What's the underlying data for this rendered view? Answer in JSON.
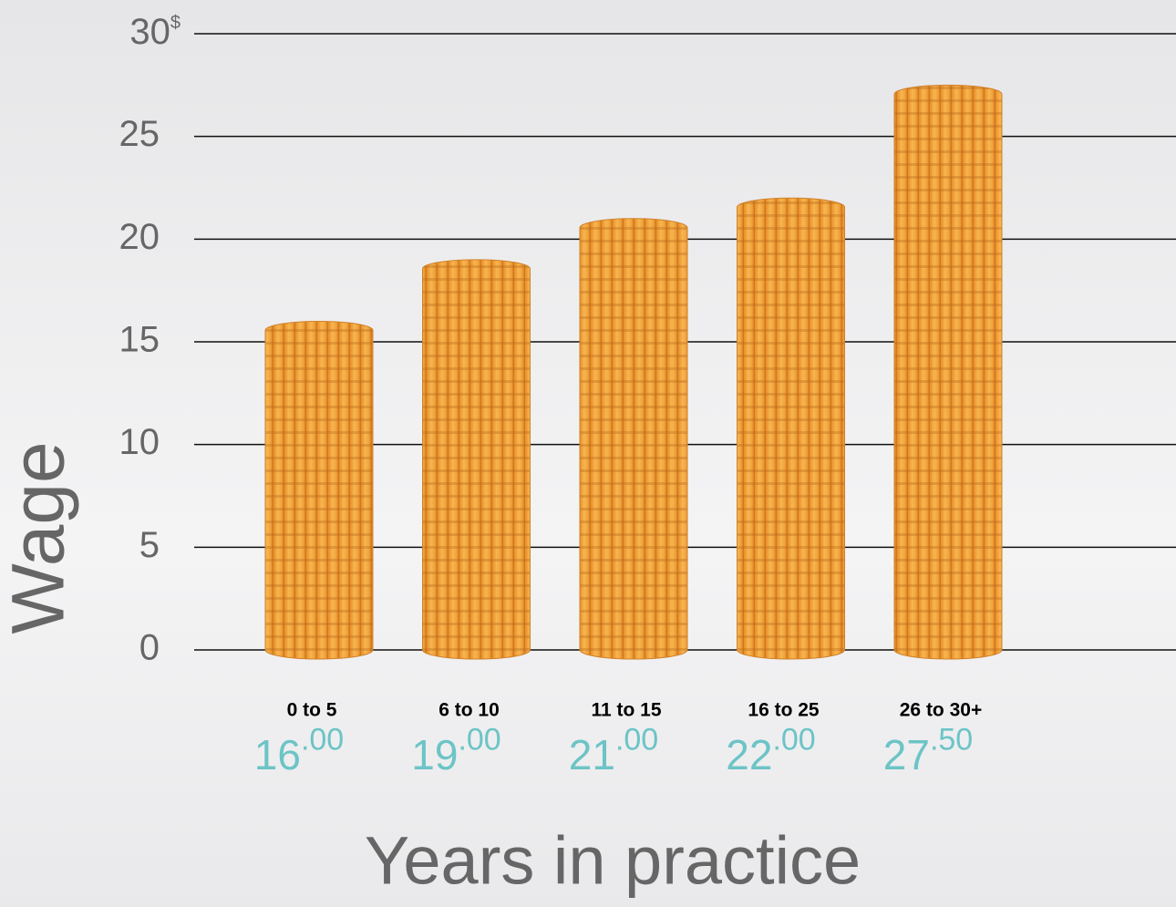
{
  "chart_data": {
    "type": "bar",
    "categories": [
      "0 to 5",
      "6 to 10",
      "11 to 15",
      "16 to 25",
      "26 to 30+"
    ],
    "values": [
      16,
      19,
      21,
      22,
      27.5
    ],
    "value_labels": [
      "16.00",
      "19.00",
      "21.00",
      "22.00",
      "27.50"
    ],
    "color": "#f2a33a",
    "ylim": [
      0,
      30
    ],
    "yticks": [
      0,
      5,
      10,
      15,
      20,
      25,
      {
        "value": 30,
        "label": "30$"
      }
    ],
    "grid": true,
    "y_label": "Wage",
    "x_label": "Years in practice"
  }
}
